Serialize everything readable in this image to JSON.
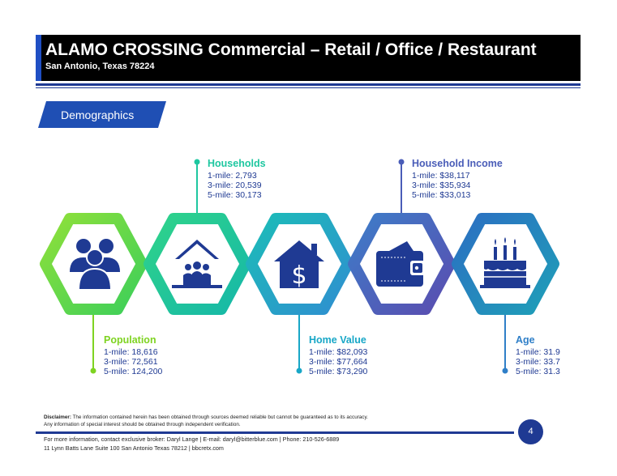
{
  "header": {
    "title": "ALAMO CROSSING Commercial – Retail / Office / Restaurant",
    "subtitle": "San Antonio, Texas 78224"
  },
  "section": {
    "label": "Demographics"
  },
  "stats": {
    "population": {
      "title": "Population",
      "lines": [
        "1-mile: 18,616",
        "3-mile: 72,561",
        "5-mile: 124,200"
      ]
    },
    "households": {
      "title": "Households",
      "lines": [
        "1-mile: 2,793",
        "3-mile: 20,539",
        "5-mile: 30,173"
      ]
    },
    "home_value": {
      "title": "Home Value",
      "lines": [
        "1-mile: $82,093",
        "3-mile: $77,664",
        "5-mile: $73,290"
      ]
    },
    "household_income": {
      "title": "Household Income",
      "lines": [
        "1-mile: $38,117",
        "3-mile: $35,934",
        "5-mile: $33,013"
      ]
    },
    "age": {
      "title": "Age",
      "lines": [
        "1-mile: 31.9",
        "3-mile: 33.7",
        "5-mile: 31.3"
      ]
    }
  },
  "icons": [
    "people-icon",
    "house-family-icon",
    "house-dollar-icon",
    "wallet-icon",
    "birthday-cake-icon"
  ],
  "colors": {
    "green": "#7ed321",
    "teal": "#1ec7a0",
    "cyan": "#18a7c7",
    "blue": "#2f64b8",
    "violet": "#5a4db0",
    "navy": "#1f3a93"
  },
  "disclaimer": {
    "label": "Disclaimer:",
    "line1": " The information contained herein has been obtained through sources deemed reliable but cannot be guaranteed as to its accuracy.",
    "line2": "Any information of special interest should be obtained through independent verification."
  },
  "footer": {
    "line1": "For more information, contact exclusive broker: Daryl Lange | E-mail: daryl@bitterblue.com | Phone: 210-526-6889",
    "line2": "11 Lynn Batts Lane Suite 100 San Antonio Texas 78212 | bbcretx.com",
    "page_number": "4"
  }
}
